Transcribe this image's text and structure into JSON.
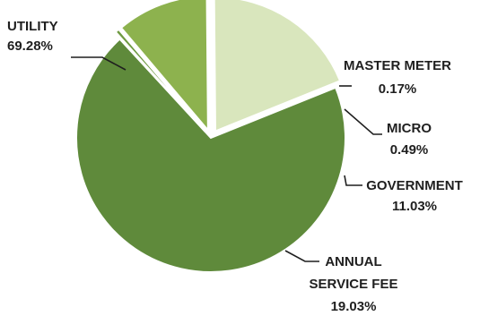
{
  "chart_data": {
    "type": "pie",
    "title": "",
    "slices": [
      {
        "label": "UTILITY",
        "value": 69.28,
        "value_label": "69.28%",
        "color": "#5f8a3b",
        "lines": [
          "UTILITY",
          "69.28%"
        ]
      },
      {
        "label": "MASTER METER",
        "value": 0.17,
        "value_label": "0.17%",
        "color": "#5f8a3b",
        "lines": [
          "MASTER METER",
          "0.17%"
        ]
      },
      {
        "label": "MICRO",
        "value": 0.49,
        "value_label": "0.49%",
        "color": "#6f9a42",
        "lines": [
          "MICRO",
          "0.49%"
        ]
      },
      {
        "label": "GOVERNMENT",
        "value": 11.03,
        "value_label": "11.03%",
        "color": "#8db24e",
        "lines": [
          "GOVERNMENT",
          "11.03%"
        ]
      },
      {
        "label": "ANNUAL SERVICE FEE",
        "value": 19.03,
        "value_label": "19.03%",
        "color": "#d9e6bd",
        "lines": [
          "ANNUAL",
          "SERVICE FEE",
          "19.03%"
        ]
      }
    ],
    "legend": "none",
    "data_labels": "outside-with-leader-lines"
  }
}
